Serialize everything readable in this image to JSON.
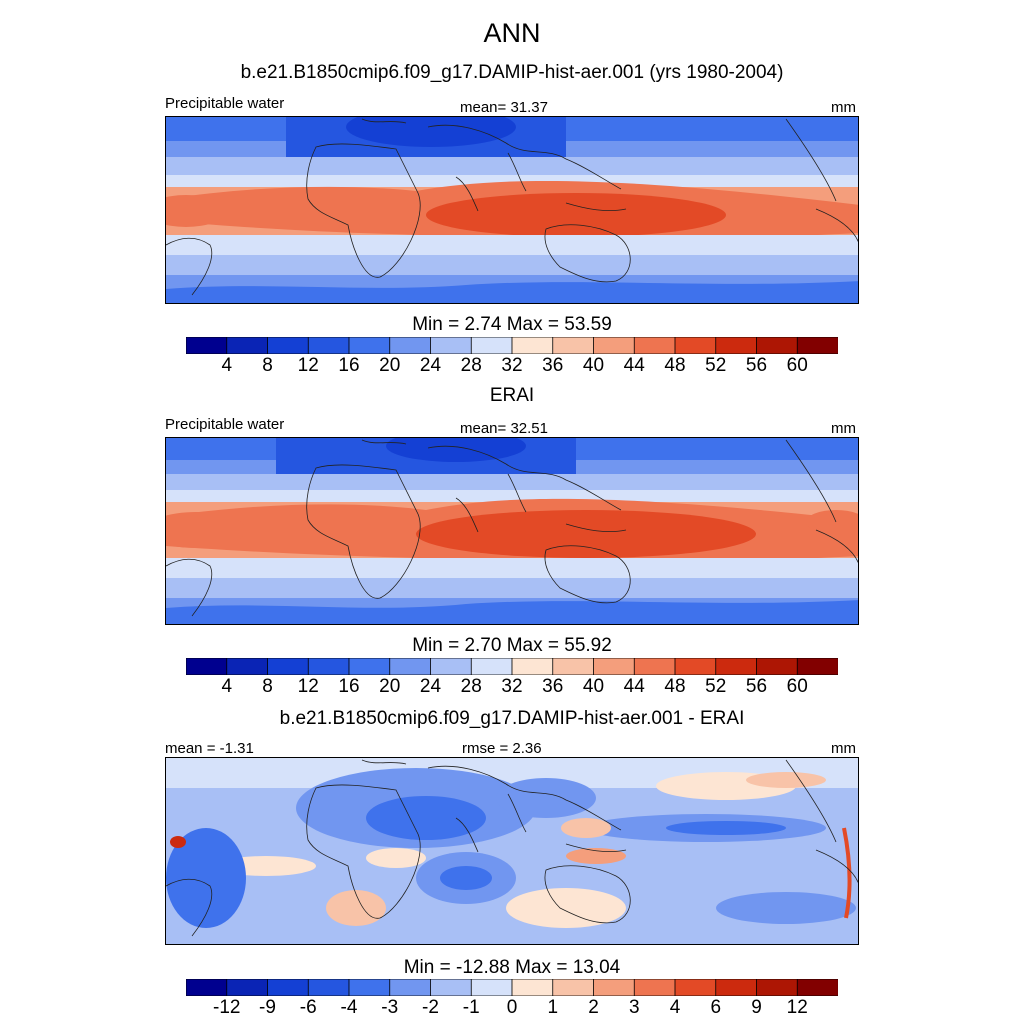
{
  "figure": {
    "title": "ANN",
    "subtitle_model": "b.e21.B1850cmip6.f09_g17.DAMIP-hist-aer.001 (yrs 1980-2004)"
  },
  "panels": [
    {
      "id": "model",
      "left_label": "Precipitable water",
      "center_label": "mean=  31.37",
      "right_label": "mm",
      "stats": "Min =   2.74 Max =  53.59",
      "kind": "abs"
    },
    {
      "id": "obs",
      "title": "ERAI",
      "left_label": "Precipitable water",
      "center_label": "mean=  32.51",
      "right_label": "mm",
      "stats": "Min =   2.70 Max =  55.92",
      "kind": "abs"
    },
    {
      "id": "diff",
      "title": "b.e21.B1850cmip6.f09_g17.DAMIP-hist-aer.001 - ERAI",
      "left_label": "mean =  -1.31",
      "center_label": "rmse =   2.36",
      "right_label": "mm",
      "stats": "Min = -12.88 Max =  13.04",
      "kind": "diff"
    }
  ],
  "colorbars": {
    "abs": {
      "levels": [
        "4",
        "8",
        "12",
        "16",
        "20",
        "24",
        "28",
        "32",
        "36",
        "40",
        "44",
        "48",
        "52",
        "56",
        "60"
      ],
      "colors": [
        "#00008f",
        "#0a24b5",
        "#1440d4",
        "#2556e0",
        "#3f72ec",
        "#7196f0",
        "#a8bff5",
        "#d6e2fa",
        "#fde5d3",
        "#f8c3a8",
        "#f49e7c",
        "#ee7450",
        "#e34a26",
        "#cc2a0e",
        "#ad1604",
        "#820000"
      ]
    },
    "diff": {
      "levels": [
        "-12",
        "-9",
        "-6",
        "-4",
        "-3",
        "-2",
        "-1",
        "0",
        "1",
        "2",
        "3",
        "4",
        "6",
        "9",
        "12"
      ],
      "colors": [
        "#00008f",
        "#0a24b5",
        "#1440d4",
        "#2556e0",
        "#3f72ec",
        "#7196f0",
        "#a8bff5",
        "#d6e2fa",
        "#fde5d3",
        "#f8c3a8",
        "#f49e7c",
        "#ee7450",
        "#e34a26",
        "#cc2a0e",
        "#ad1604",
        "#820000"
      ]
    }
  }
}
